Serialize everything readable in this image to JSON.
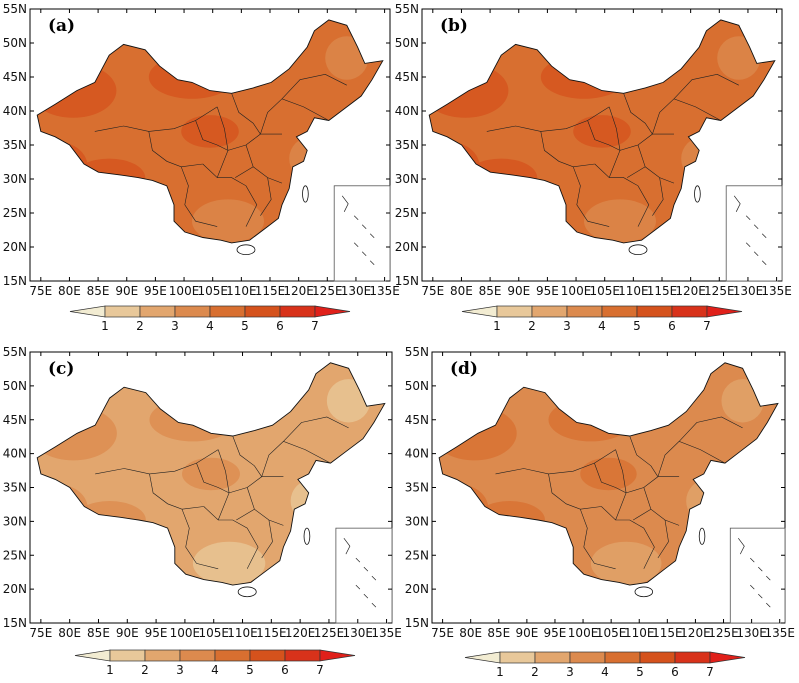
{
  "panels": [
    {
      "id": "a",
      "label": "(a)",
      "level": 4.6
    },
    {
      "id": "b",
      "label": "(b)",
      "level": 4.2
    },
    {
      "id": "c",
      "label": "(c)",
      "level": 2.4
    },
    {
      "id": "d",
      "label": "(d)",
      "level": 3.8
    }
  ],
  "lat_ticks": [
    "15N",
    "20N",
    "25N",
    "30N",
    "35N",
    "40N",
    "45N",
    "50N",
    "55N"
  ],
  "lon_ticks": [
    "75E",
    "80E",
    "85E",
    "90E",
    "95E",
    "100E",
    "105E",
    "110E",
    "115E",
    "120E",
    "125E",
    "130E",
    "135E"
  ],
  "colorbar": {
    "labels": [
      "1",
      "2",
      "3",
      "4",
      "5",
      "6",
      "7"
    ],
    "colors": [
      "#f2ecd2",
      "#e8c89a",
      "#e2a66e",
      "#dc8a4e",
      "#d86f30",
      "#d5521c",
      "#d8321a",
      "#e0201a"
    ]
  }
}
